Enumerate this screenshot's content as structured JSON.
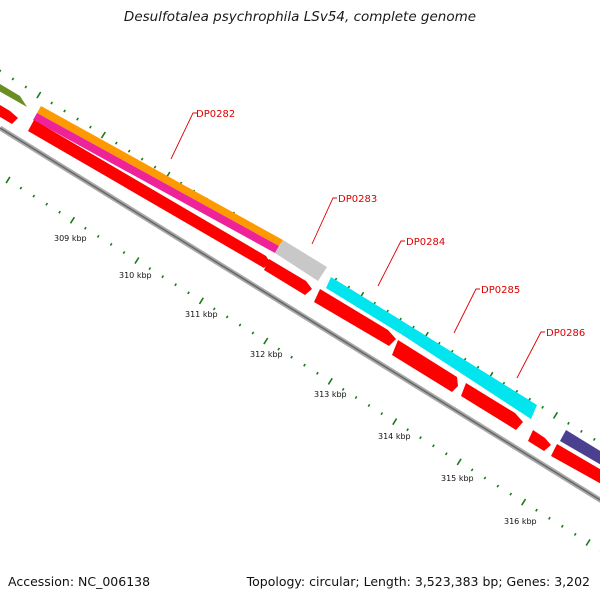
{
  "title": "Desulfotalea psychrophila LSv54, complete genome",
  "footer": {
    "accession": "Accession: NC_006138",
    "summary": "Topology: circular; Length: 3,523,383 bp; Genes: 3,202"
  },
  "colors": {
    "cds": "#ff0000",
    "backbone": "#888888",
    "tick": "#1a7a1a",
    "label": "#dd0000",
    "orange": "#ff9900",
    "magenta": "#ee2299",
    "grey": "#c8c8c8",
    "cyan": "#00e5ee",
    "olive": "#6b8e23",
    "navy": "#4b3f8f"
  },
  "gene_labels": [
    "DP0282",
    "DP0283",
    "DP0284",
    "DP0285",
    "DP0286"
  ],
  "kbp_labels": [
    "309 kbp",
    "310 kbp",
    "311 kbp",
    "312 kbp",
    "313 kbp",
    "314 kbp",
    "315 kbp",
    "316 kbp"
  ]
}
